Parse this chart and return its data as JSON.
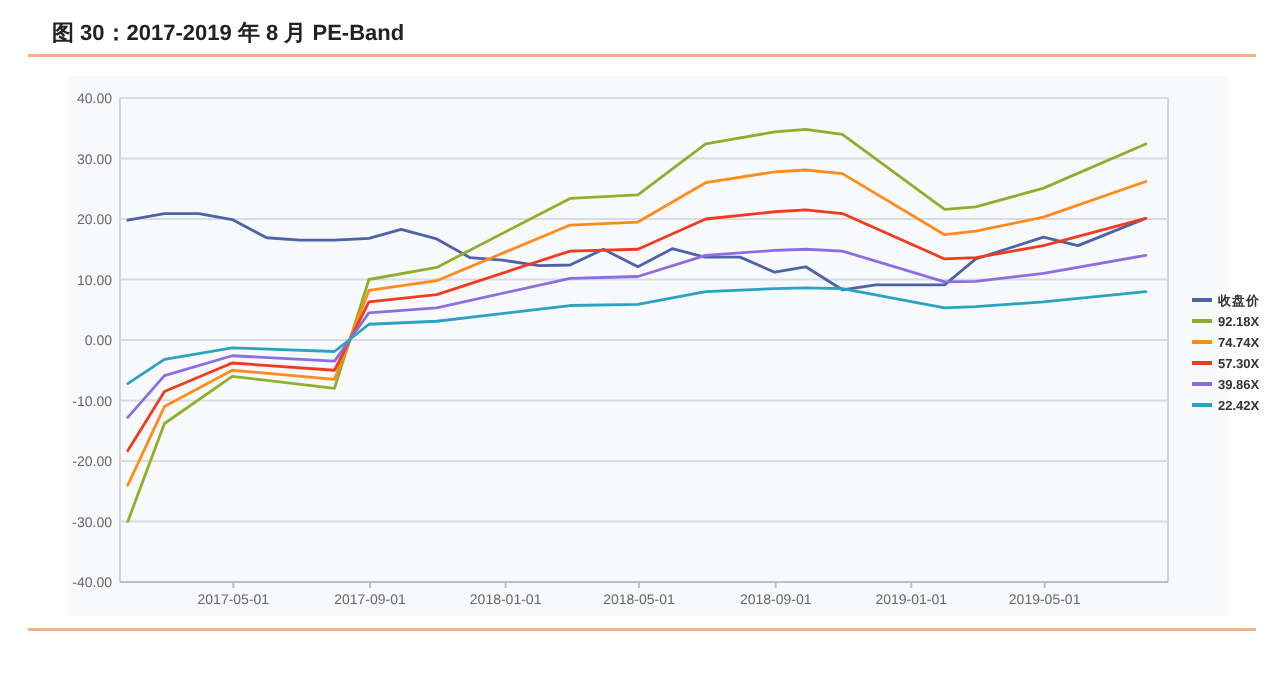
{
  "chart_data": {
    "type": "line",
    "title": "图 30：2017-2019 年 8 月 PE-Band",
    "xlim": [
      "2017-01-19",
      "2019-08-20"
    ],
    "xticks": [
      "2017-05-01",
      "2017-09-01",
      "2018-01-01",
      "2018-05-01",
      "2018-09-01",
      "2019-01-01",
      "2019-05-01"
    ],
    "ylim": [
      -40,
      40
    ],
    "yticks": [
      {
        "value": -40,
        "label": "-40.00"
      },
      {
        "value": -30,
        "label": "-30.00"
      },
      {
        "value": -20,
        "label": "-20.00"
      },
      {
        "value": -10,
        "label": "-10.00"
      },
      {
        "value": 0,
        "label": "0.00"
      },
      {
        "value": 10,
        "label": "10.00"
      },
      {
        "value": 20,
        "label": "20.00"
      },
      {
        "value": 30,
        "label": "30.00"
      },
      {
        "value": 40,
        "label": "40.00"
      }
    ],
    "grid": "y",
    "legend": "right",
    "marker": "none",
    "line_style": "solid",
    "series": [
      {
        "name": "收盘价",
        "color": "#4e62a8",
        "x": [
          "2017-01-26",
          "2017-02-28",
          "2017-03-31",
          "2017-04-30",
          "2017-05-31",
          "2017-06-30",
          "2017-07-31",
          "2017-08-31",
          "2017-09-29",
          "2017-10-31",
          "2017-11-30",
          "2017-12-29",
          "2018-01-31",
          "2018-02-28",
          "2018-03-30",
          "2018-04-30",
          "2018-05-31",
          "2018-06-29",
          "2018-07-31",
          "2018-08-31",
          "2018-09-28",
          "2018-10-31",
          "2018-11-30",
          "2019-01-31",
          "2019-02-28",
          "2019-04-30",
          "2019-05-31",
          "2019-07-31"
        ],
        "values": [
          19.8,
          20.9,
          20.9,
          19.9,
          16.9,
          16.5,
          16.5,
          16.8,
          18.3,
          16.7,
          13.6,
          13.2,
          12.3,
          12.4,
          15,
          12.1,
          15.1,
          13.7,
          13.7,
          11.2,
          12.1,
          8.3,
          9.1,
          9.1,
          13.4,
          17,
          15.6,
          20.1
        ]
      },
      {
        "name": "92.18X",
        "color": "#8db02c",
        "values": [
          -30,
          -13.8,
          -6,
          -8,
          10,
          12,
          23.4,
          24,
          32.4,
          34.4,
          34.8,
          34,
          21.6,
          22,
          25.1,
          32.4
        ]
      },
      {
        "name": "74.74X",
        "color": "#ff8c1a",
        "values": [
          -24,
          -11,
          -5,
          -6.5,
          8.2,
          9.8,
          19,
          19.5,
          26,
          27.8,
          28.1,
          27.5,
          17.4,
          18,
          20.3,
          26.2
        ]
      },
      {
        "name": "57.30X",
        "color": "#f03c1e",
        "values": [
          -18.3,
          -8.5,
          -3.8,
          -5,
          6.3,
          7.5,
          14.7,
          15,
          20,
          21.2,
          21.5,
          20.9,
          13.4,
          13.6,
          15.6,
          20.1
        ]
      },
      {
        "name": "39.86X",
        "color": "#8c6ee0",
        "values": [
          -12.8,
          -5.9,
          -2.6,
          -3.5,
          4.5,
          5.3,
          10.2,
          10.5,
          14,
          14.8,
          15,
          14.7,
          9.6,
          9.7,
          11,
          14
        ]
      },
      {
        "name": "22.42X",
        "color": "#2aa3c0",
        "values": [
          -7.2,
          -3.2,
          -1.3,
          -1.9,
          2.6,
          3.1,
          5.7,
          5.9,
          8,
          8.5,
          8.6,
          8.5,
          5.3,
          5.5,
          6.3,
          8
        ]
      }
    ],
    "x": [
      "2017-01-26",
      "2017-02-28",
      "2017-04-30",
      "2017-07-31",
      "2017-08-31",
      "2017-10-31",
      "2018-02-28",
      "2018-04-30",
      "2018-06-30",
      "2018-08-31",
      "2018-09-28",
      "2018-10-31",
      "2019-01-31",
      "2019-02-28",
      "2019-04-30",
      "2019-07-31"
    ]
  }
}
